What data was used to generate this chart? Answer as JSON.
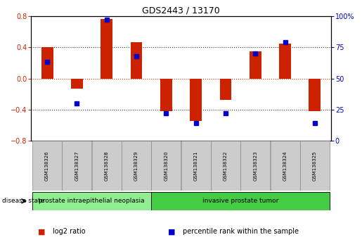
{
  "title": "GDS2443 / 13170",
  "samples": [
    "GSM138326",
    "GSM138327",
    "GSM138328",
    "GSM138329",
    "GSM138320",
    "GSM138321",
    "GSM138322",
    "GSM138323",
    "GSM138324",
    "GSM138325"
  ],
  "log2_ratio": [
    0.4,
    -0.13,
    0.76,
    0.47,
    -0.42,
    -0.55,
    -0.28,
    0.35,
    0.45,
    -0.42
  ],
  "percentile_rank": [
    63,
    30,
    97,
    68,
    22,
    14,
    22,
    70,
    79,
    14
  ],
  "ylim_left": [
    -0.8,
    0.8
  ],
  "ylim_right": [
    0,
    100
  ],
  "yticks_left": [
    -0.8,
    -0.4,
    0,
    0.4,
    0.8
  ],
  "yticks_right": [
    0,
    25,
    50,
    75,
    100
  ],
  "bar_color": "#cc2200",
  "dot_color": "#0000cc",
  "dot_size": 4,
  "bar_width": 0.4,
  "grid_color": "#333333",
  "zero_line_color": "#cc2200",
  "hline_ticks": [
    -0.4,
    0.0,
    0.4
  ],
  "disease_groups": [
    {
      "label": "prostate intraepithelial neoplasia",
      "start": 0,
      "end": 4,
      "color": "#90ee90"
    },
    {
      "label": "invasive prostate tumor",
      "start": 4,
      "end": 10,
      "color": "#44cc44"
    }
  ],
  "legend_items": [
    {
      "color": "#cc2200",
      "label": "log2 ratio"
    },
    {
      "color": "#0000cc",
      "label": "percentile rank within the sample"
    }
  ],
  "disease_state_label": "disease state",
  "sample_box_color": "#cccccc",
  "sample_box_edge": "#888888",
  "axis_label_fontsize": 7,
  "title_fontsize": 9,
  "tick_fontsize": 7,
  "sample_fontsize": 5,
  "disease_fontsize": 6.5,
  "legend_fontsize": 7
}
